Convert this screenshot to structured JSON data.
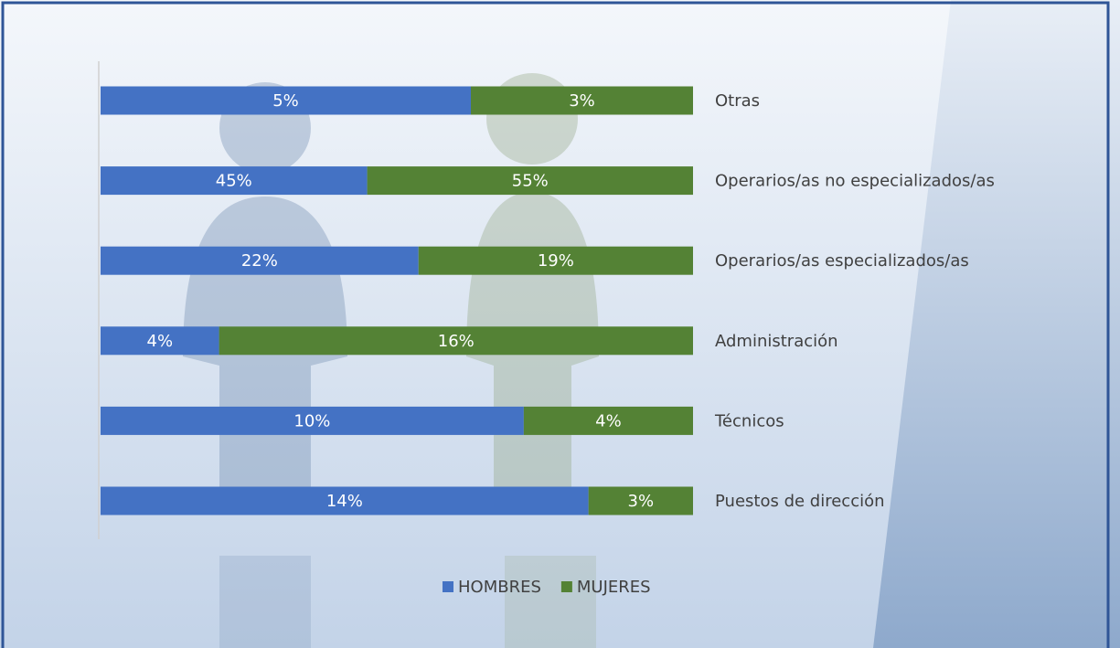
{
  "chart_data": {
    "type": "stacked100",
    "categories": [
      "Otras",
      "Operarios/as no especializados/as",
      "Operarios/as especializados/as",
      "Administración",
      "Técnicos",
      "Puestos de dirección"
    ],
    "series": [
      {
        "name": "HOMBRES",
        "color": "#4472c4",
        "values": [
          5,
          45,
          22,
          4,
          10,
          14
        ],
        "value_labels": [
          "5%",
          "45%",
          "22%",
          "4%",
          "10%",
          "14%"
        ]
      },
      {
        "name": "MUJERES",
        "color": "#548235",
        "values": [
          3,
          55,
          19,
          16,
          4,
          3
        ],
        "value_labels": [
          "3%",
          "55%",
          "19%",
          "16%",
          "4%",
          "3%"
        ]
      }
    ]
  }
}
